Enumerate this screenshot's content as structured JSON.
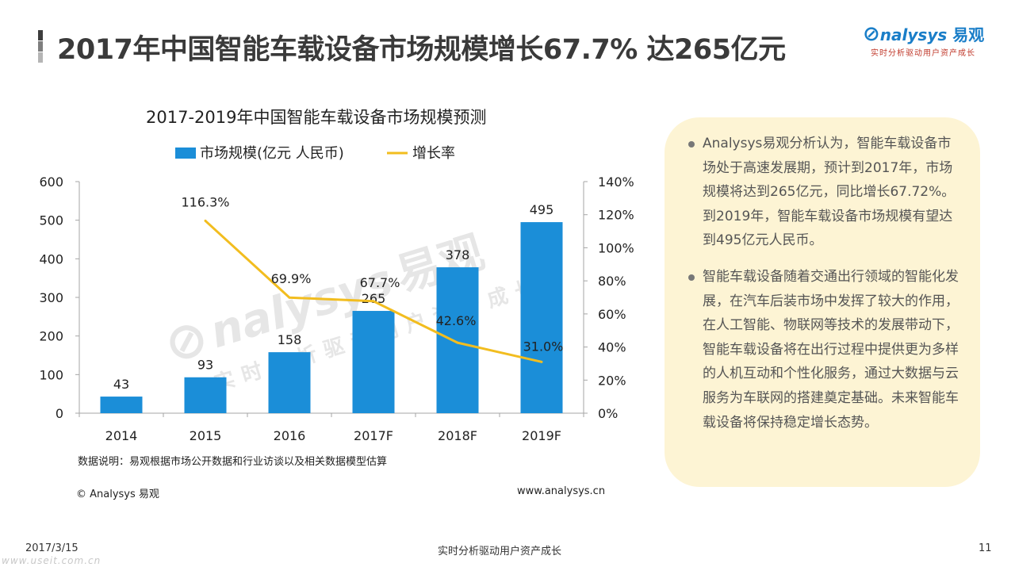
{
  "header": {
    "title": "2017年中国智能车载设备市场规模增长67.7% 达265亿元",
    "logo_word": "nalysys",
    "logo_cn": "易观",
    "logo_slogan": "实时分析驱动用户资产成长"
  },
  "chart_data": {
    "type": "bar",
    "title": "2017-2019年中国智能车载设备市场规模预测",
    "categories": [
      "2014",
      "2015",
      "2016",
      "2017F",
      "2018F",
      "2019F"
    ],
    "series": [
      {
        "name": "市场规模(亿元 人民币)",
        "type": "bar",
        "axis": "left",
        "color": "#1b8ed8",
        "values": [
          43,
          93,
          158,
          265,
          378,
          495
        ],
        "labels": [
          "43",
          "93",
          "158",
          "265",
          "378",
          "495"
        ]
      },
      {
        "name": "增长率",
        "type": "line",
        "axis": "right",
        "color": "#f2bd1f",
        "values": [
          null,
          116.3,
          69.9,
          67.7,
          42.6,
          31.0
        ],
        "labels": [
          "",
          "116.3%",
          "69.9%",
          "67.7%",
          "42.6%",
          "31.0%"
        ]
      }
    ],
    "y_left": {
      "range": [
        0,
        600
      ],
      "ticks": [
        0,
        100,
        200,
        300,
        400,
        500,
        600
      ],
      "tick_labels": [
        "0",
        "100",
        "200",
        "300",
        "400",
        "500",
        "600"
      ]
    },
    "y_right": {
      "range": [
        0,
        140
      ],
      "ticks": [
        0,
        20,
        40,
        60,
        80,
        100,
        120,
        140
      ],
      "tick_labels": [
        "0%",
        "20%",
        "40%",
        "60%",
        "80%",
        "100%",
        "120%",
        "140%"
      ]
    },
    "grid": false,
    "legend_position": "top"
  },
  "watermark": {
    "word": "nalysys",
    "cn": "易观",
    "slogan": "实时分析驱动用户资产成长"
  },
  "note": "数据说明：易观根据市场公开数据和行业访谈以及相关数据模型估算",
  "copyright": "© Analysys 易观",
  "website": "www.analysys.cn",
  "panel": {
    "items": [
      "Analysys易观分析认为，智能车载设备市场处于高速发展期，预计到2017年，市场规模将达到265亿元，同比增长67.72%。到2019年，智能车载设备市场规模有望达到495亿元人民币。",
      "智能车载设备随着交通出行领域的智能化发展，在汽车后装市场中发挥了较大的作用，在人工智能、物联网等技术的发展带动下，智能车载设备将在出行过程中提供更为多样的人机互动和个性化服务，通过大数据与云服务为车联网的搭建奠定基础。未来智能车载设备将保持稳定增长态势。"
    ]
  },
  "footer": {
    "date": "2017/3/15",
    "slogan": "实时分析驱动用户资产成长",
    "page": "11",
    "watermark": "www.useit.com.cn"
  },
  "colors": {
    "bar": "#1b8ed8",
    "line": "#f2bd1f",
    "panel_bg": "#fdf4d4",
    "logo_blue": "#1a7ec8"
  }
}
